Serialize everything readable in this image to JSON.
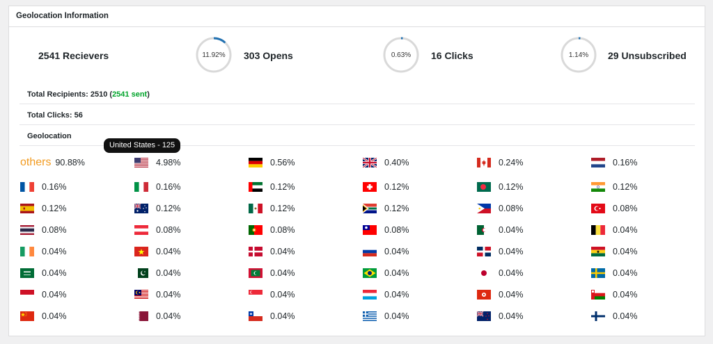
{
  "panel": {
    "title": "Geolocation Information"
  },
  "stats": {
    "receivers": "2541 Recievers",
    "opens": {
      "percent_label": "11.92%",
      "percent": 11.92,
      "label": "303 Opens"
    },
    "clicks": {
      "percent_label": "0.63%",
      "percent": 0.63,
      "label": "16 Clicks"
    },
    "unsubscribed": {
      "percent_label": "1.14%",
      "percent": 1.14,
      "label": "29 Unsubscribed"
    }
  },
  "colors": {
    "ring_track": "#d9d9d9",
    "ring_fill": "#2271b1",
    "others": "#f29a1f",
    "sent": "#00a32a"
  },
  "summary": {
    "total_recipients_prefix": "Total Recipients: 2510 (",
    "total_recipients_sent": "2541 sent",
    "total_recipients_suffix": ")",
    "total_clicks": "Total Clicks: 56",
    "geolocation_heading": "Geolocation"
  },
  "tooltip": {
    "text": "United States - 125"
  },
  "geo": {
    "others": {
      "label": "others",
      "value": "90.88%"
    },
    "countries": [
      {
        "flag": "us-flag",
        "value": "4.98%"
      },
      {
        "flag": "de-flag",
        "value": "0.56%"
      },
      {
        "flag": "gb-flag",
        "value": "0.40%"
      },
      {
        "flag": "ca-flag",
        "value": "0.24%"
      },
      {
        "flag": "nl-flag",
        "value": "0.16%"
      },
      {
        "flag": "fr-flag",
        "value": "0.16%"
      },
      {
        "flag": "it-flag",
        "value": "0.16%"
      },
      {
        "flag": "ae-flag",
        "value": "0.12%"
      },
      {
        "flag": "ch-flag",
        "value": "0.12%"
      },
      {
        "flag": "bd-flag",
        "value": "0.12%"
      },
      {
        "flag": "in-flag",
        "value": "0.12%"
      },
      {
        "flag": "es-flag",
        "value": "0.12%"
      },
      {
        "flag": "au-flag",
        "value": "0.12%"
      },
      {
        "flag": "mx-flag",
        "value": "0.12%"
      },
      {
        "flag": "za-flag",
        "value": "0.12%"
      },
      {
        "flag": "ph-flag",
        "value": "0.08%"
      },
      {
        "flag": "tr-flag",
        "value": "0.08%"
      },
      {
        "flag": "th-flag",
        "value": "0.08%"
      },
      {
        "flag": "at-flag",
        "value": "0.08%"
      },
      {
        "flag": "pt-flag",
        "value": "0.08%"
      },
      {
        "flag": "tw-flag",
        "value": "0.08%"
      },
      {
        "flag": "dz-flag",
        "value": "0.04%"
      },
      {
        "flag": "be-flag",
        "value": "0.04%"
      },
      {
        "flag": "ie-flag",
        "value": "0.04%"
      },
      {
        "flag": "vn-flag",
        "value": "0.04%"
      },
      {
        "flag": "dk-flag",
        "value": "0.04%"
      },
      {
        "flag": "ru-flag",
        "value": "0.04%"
      },
      {
        "flag": "do-flag",
        "value": "0.04%"
      },
      {
        "flag": "gh-flag",
        "value": "0.04%"
      },
      {
        "flag": "sa-flag",
        "value": "0.04%"
      },
      {
        "flag": "pk-flag",
        "value": "0.04%"
      },
      {
        "flag": "mv-flag",
        "value": "0.04%"
      },
      {
        "flag": "br-flag",
        "value": "0.04%"
      },
      {
        "flag": "jp-flag",
        "value": "0.04%"
      },
      {
        "flag": "se-flag",
        "value": "0.04%"
      },
      {
        "flag": "id-flag",
        "value": "0.04%"
      },
      {
        "flag": "my-flag",
        "value": "0.04%"
      },
      {
        "flag": "sg-flag",
        "value": "0.04%"
      },
      {
        "flag": "lu-flag",
        "value": "0.04%"
      },
      {
        "flag": "hk-flag",
        "value": "0.04%"
      },
      {
        "flag": "om-flag",
        "value": "0.04%"
      },
      {
        "flag": "cn-flag",
        "value": "0.04%"
      },
      {
        "flag": "qa-flag",
        "value": "0.04%"
      },
      {
        "flag": "cl-flag",
        "value": "0.04%"
      },
      {
        "flag": "gr-flag",
        "value": "0.04%"
      },
      {
        "flag": "nz-flag",
        "value": "0.04%"
      },
      {
        "flag": "fi-flag",
        "value": "0.04%"
      }
    ]
  }
}
